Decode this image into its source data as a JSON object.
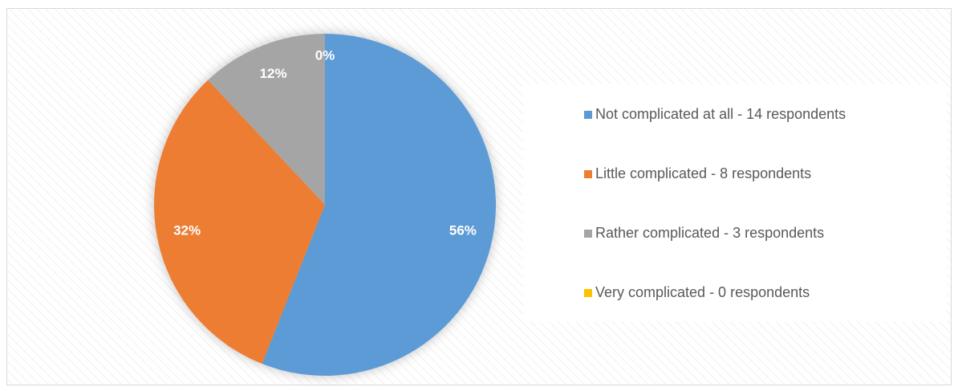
{
  "chart_data": {
    "type": "pie",
    "categories": [
      "Not complicated at all - 14 respondents",
      "Little complicated - 8 respondents",
      "Rather complicated - 3 respondents",
      "Very complicated - 0 respondents"
    ],
    "values": [
      56,
      32,
      12,
      0
    ],
    "value_labels": [
      "56%",
      "32%",
      "12%",
      "0%"
    ],
    "colors": [
      "#5b9bd5",
      "#ed7d31",
      "#a5a5a5",
      "#ffc000"
    ],
    "legend": "right"
  }
}
